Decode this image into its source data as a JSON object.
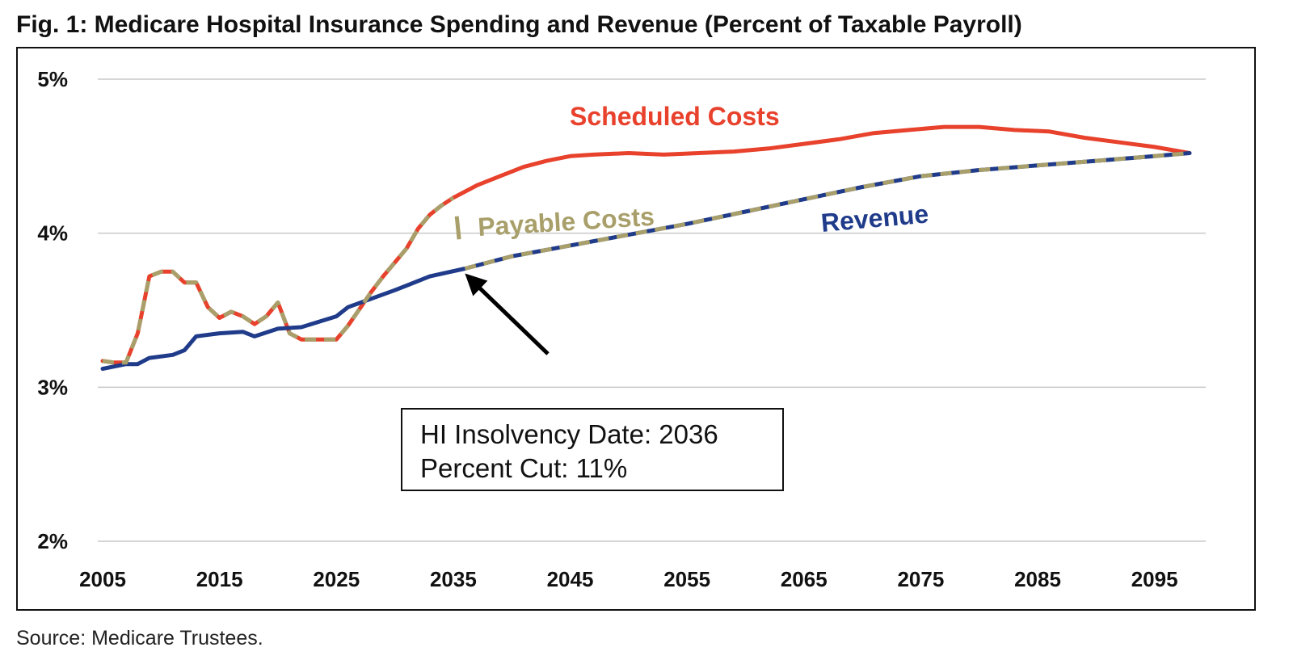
{
  "title": "Fig. 1: Medicare Hospital Insurance Spending and Revenue (Percent of Taxable Payroll)",
  "source": "Source: Medicare Trustees.",
  "callout": {
    "line1": "HI Insolvency Date: 2036",
    "line2": "Percent Cut: 11%"
  },
  "chart_data": {
    "type": "line",
    "title": "Fig. 1: Medicare Hospital Insurance Spending and Revenue (Percent of Taxable Payroll)",
    "xlim": [
      2005,
      2098
    ],
    "ylim": [
      2,
      5
    ],
    "x_ticks": [
      2005,
      2015,
      2025,
      2035,
      2045,
      2055,
      2065,
      2075,
      2085,
      2095
    ],
    "y_ticks": [
      2,
      3,
      4,
      5
    ],
    "y_tick_labels": [
      "2%",
      "3%",
      "4%",
      "5%"
    ],
    "grid": "horizontal",
    "legend": "none",
    "series": [
      {
        "name": "Scheduled Costs",
        "color": "#e8412c",
        "x": [
          2005,
          2006,
          2007,
          2008,
          2009,
          2010,
          2011,
          2012,
          2013,
          2014,
          2015,
          2016,
          2017,
          2018,
          2019,
          2020,
          2021,
          2022,
          2023,
          2024,
          2025,
          2026,
          2027,
          2028,
          2029,
          2030,
          2031,
          2032,
          2033,
          2034,
          2035,
          2037,
          2039,
          2041,
          2043,
          2045,
          2047,
          2050,
          2053,
          2056,
          2059,
          2062,
          2065,
          2068,
          2071,
          2074,
          2077,
          2080,
          2083,
          2086,
          2089,
          2092,
          2095,
          2098
        ],
        "values": [
          3.17,
          3.16,
          3.16,
          3.35,
          3.72,
          3.75,
          3.75,
          3.68,
          3.68,
          3.52,
          3.45,
          3.49,
          3.46,
          3.41,
          3.46,
          3.55,
          3.35,
          3.31,
          3.31,
          3.31,
          3.31,
          3.4,
          3.51,
          3.62,
          3.72,
          3.81,
          3.9,
          4.03,
          4.12,
          4.18,
          4.23,
          4.31,
          4.37,
          4.43,
          4.47,
          4.5,
          4.51,
          4.52,
          4.51,
          4.52,
          4.53,
          4.55,
          4.58,
          4.61,
          4.65,
          4.67,
          4.69,
          4.69,
          4.67,
          4.66,
          4.62,
          4.59,
          4.56,
          4.52
        ]
      },
      {
        "name": "Revenue",
        "color": "#1f3b8a",
        "x": [
          2005,
          2007,
          2008,
          2009,
          2011,
          2012,
          2013,
          2015,
          2017,
          2018,
          2020,
          2022,
          2025,
          2026,
          2030,
          2033,
          2036,
          2040,
          2045,
          2050,
          2055,
          2060,
          2065,
          2070,
          2075,
          2080,
          2085,
          2090,
          2095,
          2098
        ],
        "values": [
          3.12,
          3.15,
          3.15,
          3.19,
          3.21,
          3.24,
          3.33,
          3.35,
          3.36,
          3.33,
          3.38,
          3.39,
          3.46,
          3.52,
          3.63,
          3.72,
          3.77,
          3.85,
          3.92,
          3.99,
          4.06,
          4.14,
          4.22,
          4.3,
          4.37,
          4.41,
          4.44,
          4.47,
          4.5,
          4.52
        ]
      },
      {
        "name": "Payable Costs",
        "color": "#a89f6a",
        "x": [
          2005,
          2006,
          2007,
          2008,
          2009,
          2010,
          2011,
          2012,
          2013,
          2014,
          2015,
          2016,
          2017,
          2018,
          2019,
          2020,
          2021,
          2022,
          2023,
          2024,
          2025,
          2026,
          2027,
          2028,
          2029,
          2030,
          2031,
          2032,
          2033,
          2034,
          2035
        ],
        "values": [
          3.17,
          3.16,
          3.16,
          3.35,
          3.72,
          3.75,
          3.75,
          3.68,
          3.68,
          3.52,
          3.45,
          3.49,
          3.46,
          3.41,
          3.46,
          3.55,
          3.35,
          3.31,
          3.31,
          3.31,
          3.31,
          3.4,
          3.51,
          3.62,
          3.72,
          3.81,
          3.9,
          4.03,
          4.12,
          4.18,
          4.23
        ],
        "x_after": [
          2036,
          2040,
          2045,
          2050,
          2055,
          2060,
          2065,
          2070,
          2075,
          2080,
          2085,
          2090,
          2095,
          2098
        ],
        "values_after": [
          3.77,
          3.85,
          3.92,
          3.99,
          4.06,
          4.14,
          4.22,
          4.3,
          4.37,
          4.41,
          4.44,
          4.47,
          4.5,
          4.52
        ]
      }
    ],
    "annotations": [
      {
        "text": "Scheduled Costs",
        "color": "#e8412c"
      },
      {
        "text": "Payable Costs",
        "color": "#a89f6a"
      },
      {
        "text": "Revenue",
        "color": "#1f3b8a"
      }
    ]
  }
}
